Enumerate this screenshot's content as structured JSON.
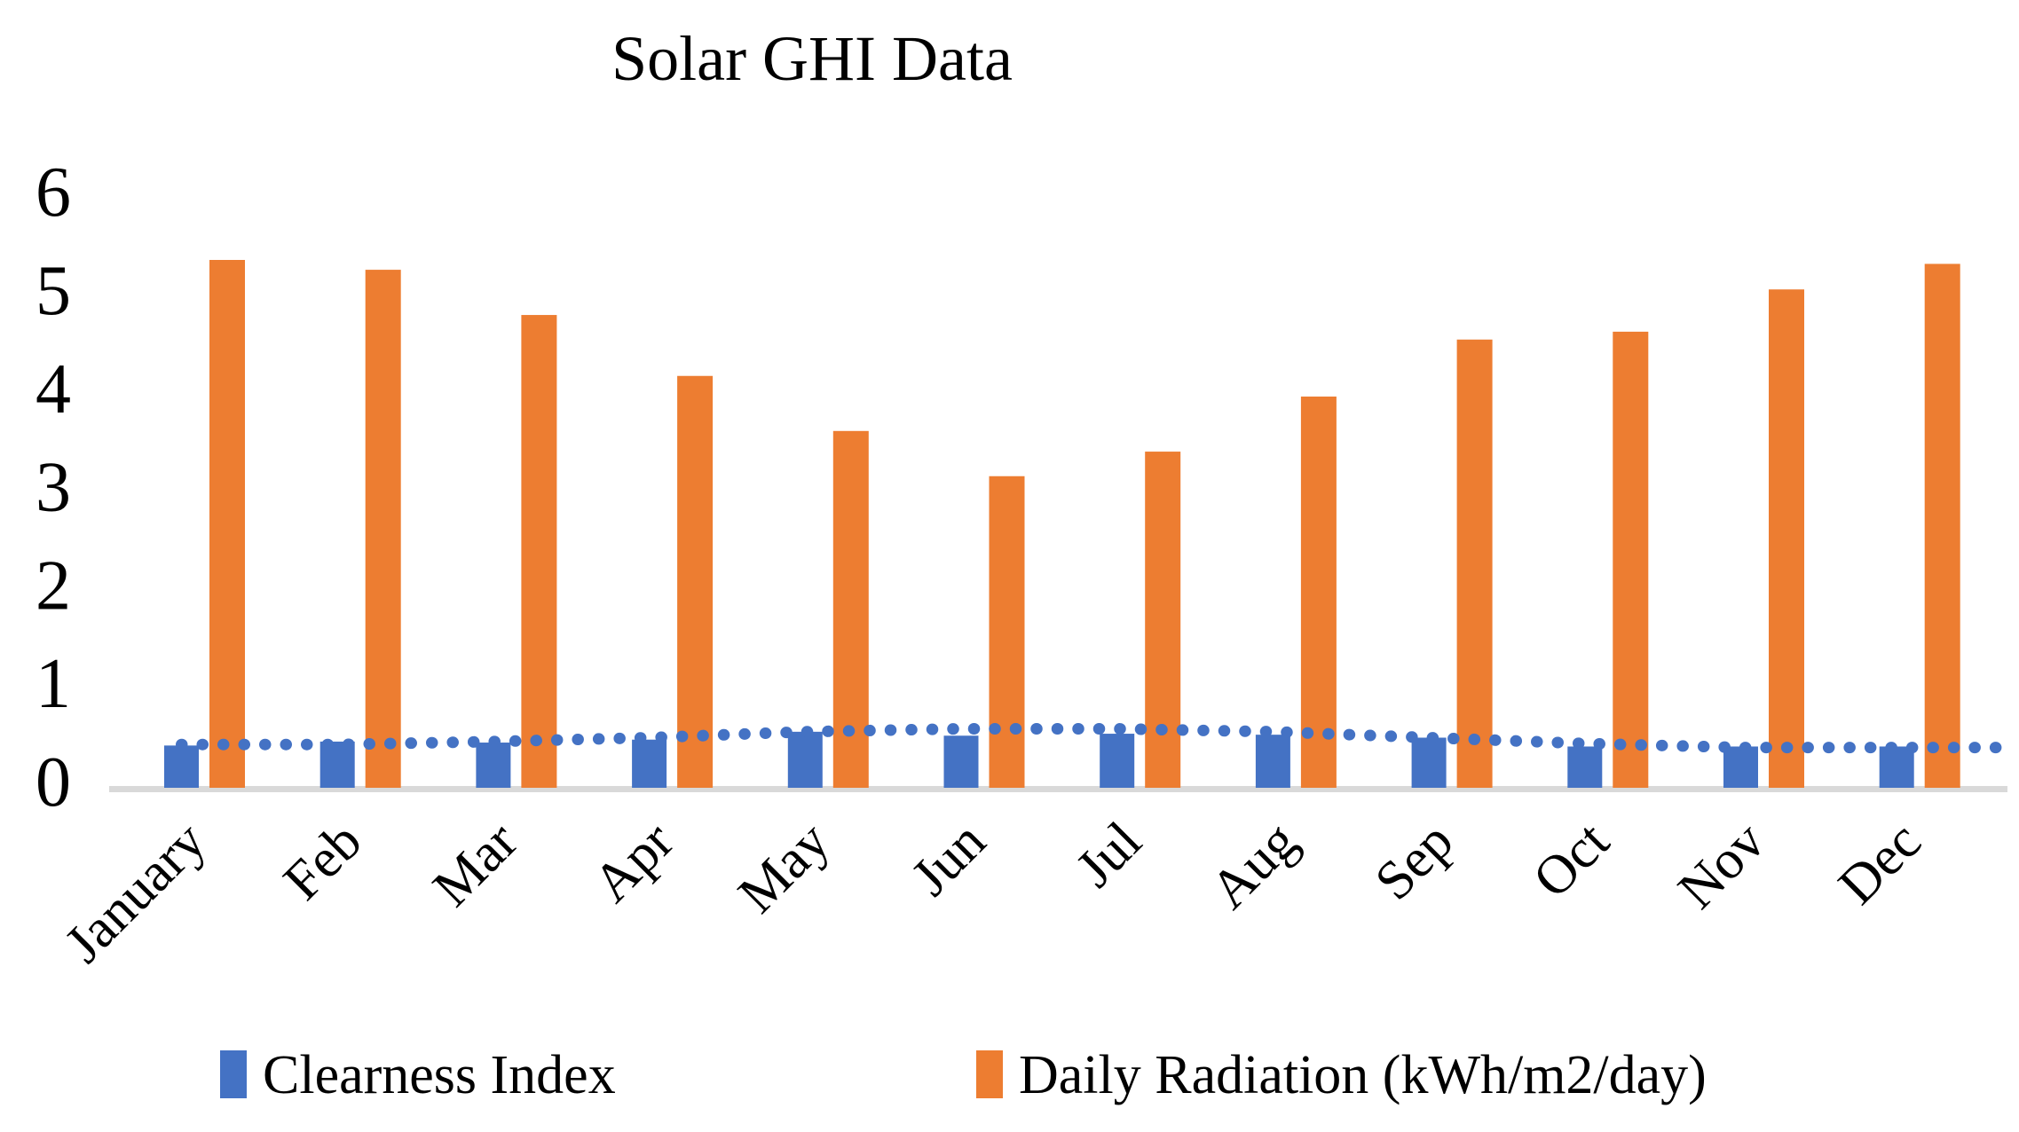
{
  "title": "Solar GHI Data",
  "colors": {
    "clearness_index": "#4472C4",
    "daily_radiation": "#ED7D31",
    "trendline": "#4472C4",
    "axis_line": "#D9D9D9",
    "text": "#000000",
    "background": "#FFFFFF"
  },
  "y_axis": {
    "tick_labels": [
      "0",
      "1",
      "2",
      "3",
      "4",
      "5",
      "6"
    ],
    "min": 0,
    "max": 6
  },
  "legend": {
    "position": "bottom",
    "items": [
      {
        "label": "Clearness Index",
        "color": "#4472C4"
      },
      {
        "label": "Daily Radiation (kWh/m2/day)",
        "color": "#ED7D31"
      }
    ]
  },
  "chart_data": {
    "type": "bar",
    "title": "Solar GHI Data",
    "categories": [
      "January",
      "Feb",
      "Mar",
      "Apr",
      "May",
      "Jun",
      "Jul",
      "Aug",
      "Sep",
      "Oct",
      "Nov",
      "Dec"
    ],
    "series": [
      {
        "name": "Clearness Index",
        "type": "bar",
        "color": "#4472C4",
        "values": [
          0.43,
          0.47,
          0.46,
          0.49,
          0.57,
          0.53,
          0.55,
          0.54,
          0.51,
          0.42,
          0.42,
          0.42
        ]
      },
      {
        "name": "Daily Radiation (kWh/m2/day)",
        "type": "bar",
        "color": "#ED7D31",
        "values": [
          5.37,
          5.27,
          4.81,
          4.19,
          3.63,
          3.17,
          3.42,
          3.98,
          4.56,
          4.64,
          5.07,
          5.33
        ]
      },
      {
        "name": "Clearness Index trendline",
        "type": "dotted-line",
        "color": "#4472C4",
        "values": [
          0.44,
          0.44,
          0.47,
          0.51,
          0.57,
          0.6,
          0.6,
          0.57,
          0.51,
          0.45,
          0.41,
          0.41
        ]
      }
    ],
    "xlabel": "",
    "ylabel": "",
    "ylim": [
      0,
      6
    ],
    "grid": false,
    "legend_position": "bottom"
  }
}
